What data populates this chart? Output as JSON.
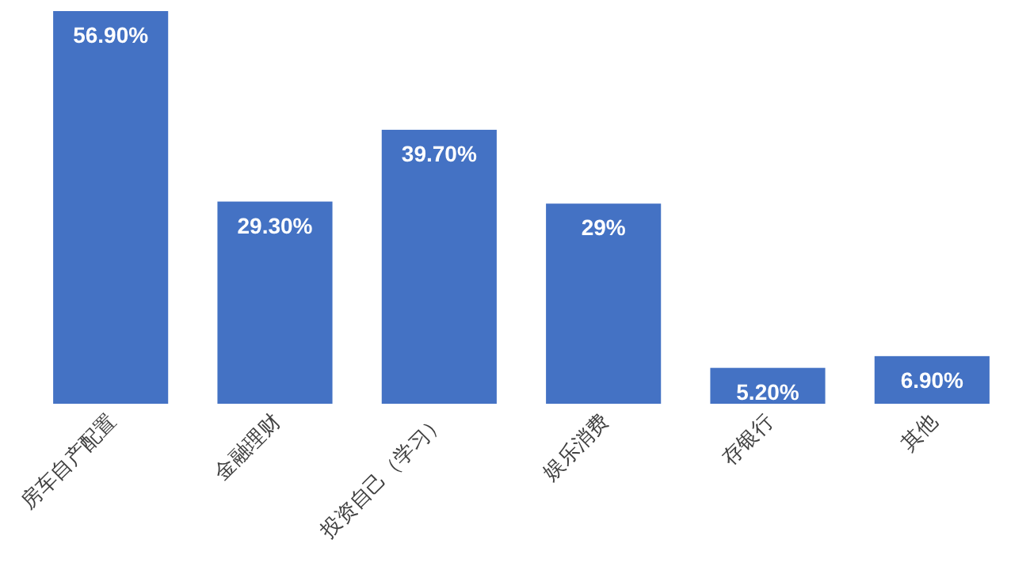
{
  "chart_data": {
    "type": "bar",
    "categories": [
      "房车自产配置",
      "金融理财",
      "投资自己（学习）",
      "娱乐消费",
      "存银行",
      "其他"
    ],
    "values": [
      56.9,
      29.3,
      39.7,
      29,
      5.2,
      6.9
    ],
    "value_labels": [
      "56.90%",
      "29.30%",
      "39.70%",
      "29%",
      "5.20%",
      "6.90%"
    ],
    "color": "#4472c4"
  }
}
